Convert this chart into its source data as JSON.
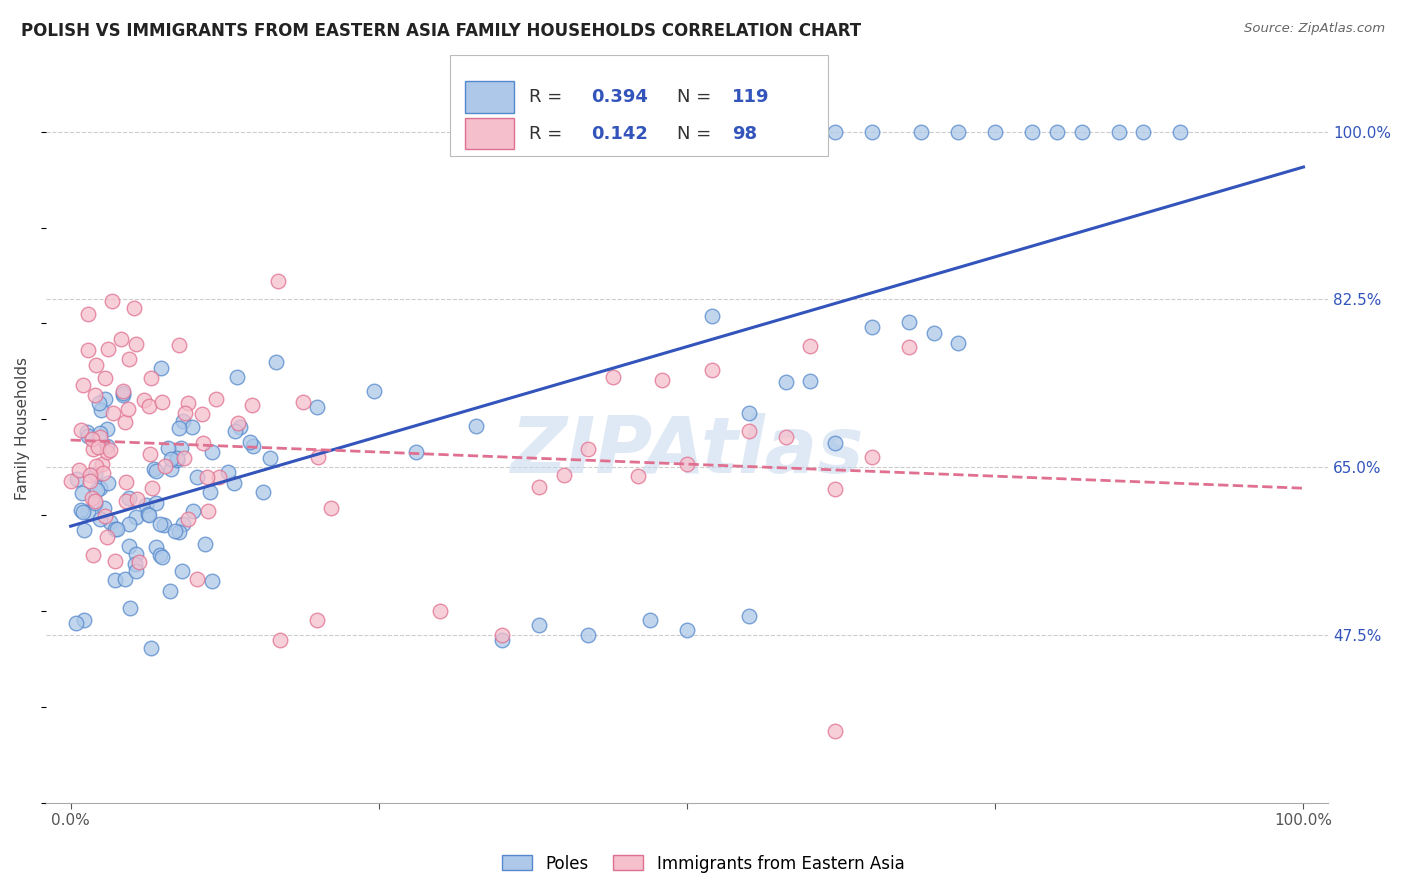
{
  "title": "POLISH VS IMMIGRANTS FROM EASTERN ASIA FAMILY HOUSEHOLDS CORRELATION CHART",
  "source": "Source: ZipAtlas.com",
  "ylabel": "Family Households",
  "watermark": "ZIPAtlas",
  "poles_color": "#adc8e8",
  "poles_edge_color": "#5588cc",
  "immigrants_color": "#f5bfcc",
  "immigrants_edge_color": "#e07090",
  "poles_R": 0.394,
  "poles_N": 119,
  "immigrants_R": 0.142,
  "immigrants_N": 98,
  "legend_label_poles": "Poles",
  "legend_label_immigrants": "Immigrants from Eastern Asia",
  "poles_line_color": "#3355bb",
  "immigrants_line_color": "#e07090",
  "ytick_values": [
    0.475,
    0.65,
    0.825,
    1.0
  ],
  "xmin": 0.0,
  "xmax": 1.0,
  "ymin": 0.3,
  "ymax": 1.08
}
